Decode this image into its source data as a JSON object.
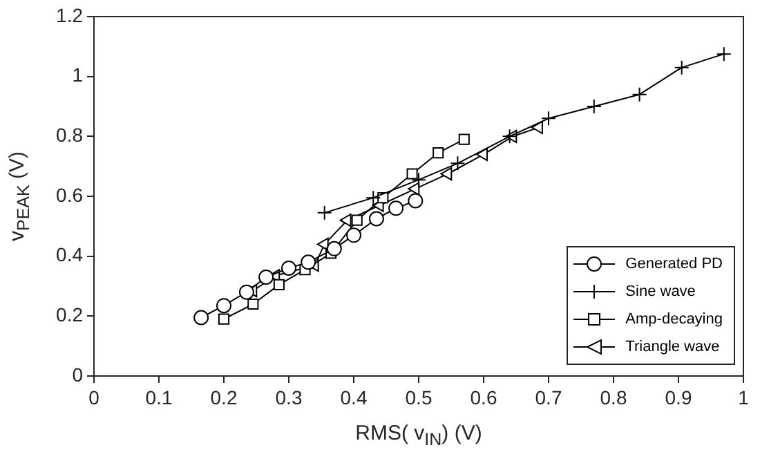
{
  "chart_data": {
    "type": "line",
    "xlabel": "RMS( v$_{IN}$) (V)",
    "ylabel": "v$_{PEAK}$ (V)",
    "xlim": [
      0,
      1
    ],
    "xticks": [
      0,
      0.1,
      0.2,
      0.3,
      0.4,
      0.5,
      0.6,
      0.7,
      0.8,
      0.9,
      1
    ],
    "ylim": [
      0,
      1.2
    ],
    "yticks": [
      0,
      0.2,
      0.4,
      0.6,
      0.8,
      1,
      1.2
    ],
    "grid": false,
    "legend": "bottom right",
    "line_style": "solid",
    "series": [
      {
        "name": "Generated PD",
        "color": "#000000",
        "marker": "circle",
        "x": [
          0.165,
          0.2,
          0.235,
          0.265,
          0.3,
          0.33,
          0.37,
          0.4,
          0.435,
          0.465,
          0.495
        ],
        "values": [
          0.195,
          0.235,
          0.28,
          0.33,
          0.36,
          0.38,
          0.425,
          0.47,
          0.525,
          0.56,
          0.585
        ]
      },
      {
        "name": "Sine wave",
        "color": "#000000",
        "marker": "cross",
        "x": [
          0.355,
          0.43,
          0.5,
          0.56,
          0.64,
          0.7,
          0.77,
          0.84,
          0.905,
          0.97
        ],
        "values": [
          0.545,
          0.595,
          0.655,
          0.71,
          0.8,
          0.86,
          0.9,
          0.94,
          1.03,
          1.075
        ]
      },
      {
        "name": "Amp-decaying",
        "color": "#000000",
        "marker": "square",
        "x": [
          0.2,
          0.245,
          0.285,
          0.325,
          0.365,
          0.405,
          0.445,
          0.49,
          0.53,
          0.57
        ],
        "values": [
          0.19,
          0.24,
          0.305,
          0.355,
          0.41,
          0.52,
          0.595,
          0.675,
          0.745,
          0.79
        ]
      },
      {
        "name": "Triangle wave",
        "color": "#000000",
        "marker": "triangle",
        "x": [
          0.245,
          0.28,
          0.34,
          0.355,
          0.39,
          0.44,
          0.495,
          0.545,
          0.6,
          0.645,
          0.685
        ],
        "values": [
          0.285,
          0.335,
          0.37,
          0.44,
          0.52,
          0.57,
          0.625,
          0.675,
          0.74,
          0.8,
          0.83
        ]
      }
    ]
  }
}
